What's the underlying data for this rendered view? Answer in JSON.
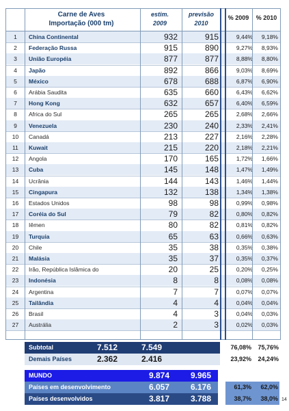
{
  "top_note": "",
  "header": {
    "title_line1": "Carne de Aves",
    "title_line2": "Importação (000 tm)",
    "col1_line1": "estim.",
    "col1_line2": "2009",
    "col2_line1": "previsão",
    "col2_line2": "2010",
    "col3": "% 2009",
    "col4": "% 2010"
  },
  "rows": [
    {
      "n": "1",
      "name": "China Continental",
      "v2009": "932",
      "v2010": "915",
      "p2009": "9,44%",
      "p2010": "9,18%",
      "bold": true
    },
    {
      "n": "2",
      "name": "Federação Russa",
      "v2009": "915",
      "v2010": "890",
      "p2009": "9,27%",
      "p2010": "8,93%",
      "bold": true
    },
    {
      "n": "3",
      "name": "União Européia",
      "v2009": "877",
      "v2010": "877",
      "p2009": "8,88%",
      "p2010": "8,80%",
      "bold": true
    },
    {
      "n": "4",
      "name": "Japão",
      "v2009": "892",
      "v2010": "866",
      "p2009": "9,03%",
      "p2010": "8,69%",
      "bold": true
    },
    {
      "n": "5",
      "name": "México",
      "v2009": "678",
      "v2010": "688",
      "p2009": "6,87%",
      "p2010": "6,90%",
      "bold": true
    },
    {
      "n": "6",
      "name": "Arábia Saudita",
      "v2009": "635",
      "v2010": "660",
      "p2009": "6,43%",
      "p2010": "6,62%",
      "bold": false
    },
    {
      "n": "7",
      "name": "Hong Kong",
      "v2009": "632",
      "v2010": "657",
      "p2009": "6,40%",
      "p2010": "6,59%",
      "bold": true
    },
    {
      "n": "8",
      "name": "Africa do Sul",
      "v2009": "265",
      "v2010": "265",
      "p2009": "2,68%",
      "p2010": "2,66%",
      "bold": false
    },
    {
      "n": "9",
      "name": "Venezuela",
      "v2009": "230",
      "v2010": "240",
      "p2009": "2,33%",
      "p2010": "2,41%",
      "bold": true
    },
    {
      "n": "10",
      "name": "Canadá",
      "v2009": "213",
      "v2010": "227",
      "p2009": "2,16%",
      "p2010": "2,28%",
      "bold": false
    },
    {
      "n": "11",
      "name": "Kuwait",
      "v2009": "215",
      "v2010": "220",
      "p2009": "2,18%",
      "p2010": "2,21%",
      "bold": true
    },
    {
      "n": "12",
      "name": "Angola",
      "v2009": "170",
      "v2010": "165",
      "p2009": "1,72%",
      "p2010": "1,66%",
      "bold": false
    },
    {
      "n": "13",
      "name": "Cuba",
      "v2009": "145",
      "v2010": "148",
      "p2009": "1,47%",
      "p2010": "1,49%",
      "bold": true
    },
    {
      "n": "14",
      "name": "Ucrânia",
      "v2009": "144",
      "v2010": "143",
      "p2009": "1,46%",
      "p2010": "1,44%",
      "bold": false
    },
    {
      "n": "15",
      "name": "Cingapura",
      "v2009": "132",
      "v2010": "138",
      "p2009": "1,34%",
      "p2010": "1,38%",
      "bold": true
    },
    {
      "n": "16",
      "name": "Estados Unidos",
      "v2009": "98",
      "v2010": "98",
      "p2009": "0,99%",
      "p2010": "0,98%",
      "bold": false
    },
    {
      "n": "17",
      "name": "Coréia do Sul",
      "v2009": "79",
      "v2010": "82",
      "p2009": "0,80%",
      "p2010": "0,82%",
      "bold": true
    },
    {
      "n": "18",
      "name": "Iêmen",
      "v2009": "80",
      "v2010": "82",
      "p2009": "0,81%",
      "p2010": "0,82%",
      "bold": false
    },
    {
      "n": "19",
      "name": "Turquia",
      "v2009": "65",
      "v2010": "63",
      "p2009": "0,66%",
      "p2010": "0,63%",
      "bold": true
    },
    {
      "n": "20",
      "name": "Chile",
      "v2009": "35",
      "v2010": "38",
      "p2009": "0,35%",
      "p2010": "0,38%",
      "bold": false
    },
    {
      "n": "21",
      "name": "Malásia",
      "v2009": "35",
      "v2010": "37",
      "p2009": "0,35%",
      "p2010": "0,37%",
      "bold": true
    },
    {
      "n": "22",
      "name": "Irão, República Islâmica do",
      "v2009": "20",
      "v2010": "25",
      "p2009": "0,20%",
      "p2010": "0,25%",
      "bold": false
    },
    {
      "n": "23",
      "name": "Indonésia",
      "v2009": "8",
      "v2010": "8",
      "p2009": "0,08%",
      "p2010": "0,08%",
      "bold": true
    },
    {
      "n": "24",
      "name": "Argentina",
      "v2009": "7",
      "v2010": "7",
      "p2009": "0,07%",
      "p2010": "0,07%",
      "bold": false
    },
    {
      "n": "25",
      "name": "Tailândia",
      "v2009": "4",
      "v2010": "4",
      "p2009": "0,04%",
      "p2010": "0,04%",
      "bold": true
    },
    {
      "n": "26",
      "name": "Brasil",
      "v2009": "4",
      "v2010": "3",
      "p2009": "0,04%",
      "p2010": "0,03%",
      "bold": false
    },
    {
      "n": "27",
      "name": "Austrália",
      "v2009": "2",
      "v2010": "3",
      "p2009": "0,02%",
      "p2010": "0,03%",
      "bold": false
    }
  ],
  "subtotal": {
    "label": "Subtotal",
    "v2009": "7.512",
    "v2010": "7.549",
    "p2009": "76,08%",
    "p2010": "75,76%"
  },
  "others": {
    "label": "Demais Países",
    "v2009": "2.362",
    "v2010": "2.416",
    "p2009": "23,92%",
    "p2010": "24,24%"
  },
  "world": {
    "label": "MUNDO",
    "v2009": "9.874",
    "v2010": "9.965"
  },
  "developing": {
    "label": "Países em desenvolvimento",
    "v2009": "6.057",
    "v2010": "6.176",
    "p2009": "61,3%",
    "p2010": "62,0%"
  },
  "developed": {
    "label": "Países desenvolvidos",
    "v2009": "3.817",
    "v2010": "3.788",
    "p2009": "38,7%",
    "p2010": "38,0%"
  },
  "page_number": "14",
  "colors": {
    "title": "#1a3f6b",
    "subtotal_band": "#1f3c73",
    "world_band": "#1c1ce6",
    "summary_band": "#5b84c4"
  }
}
